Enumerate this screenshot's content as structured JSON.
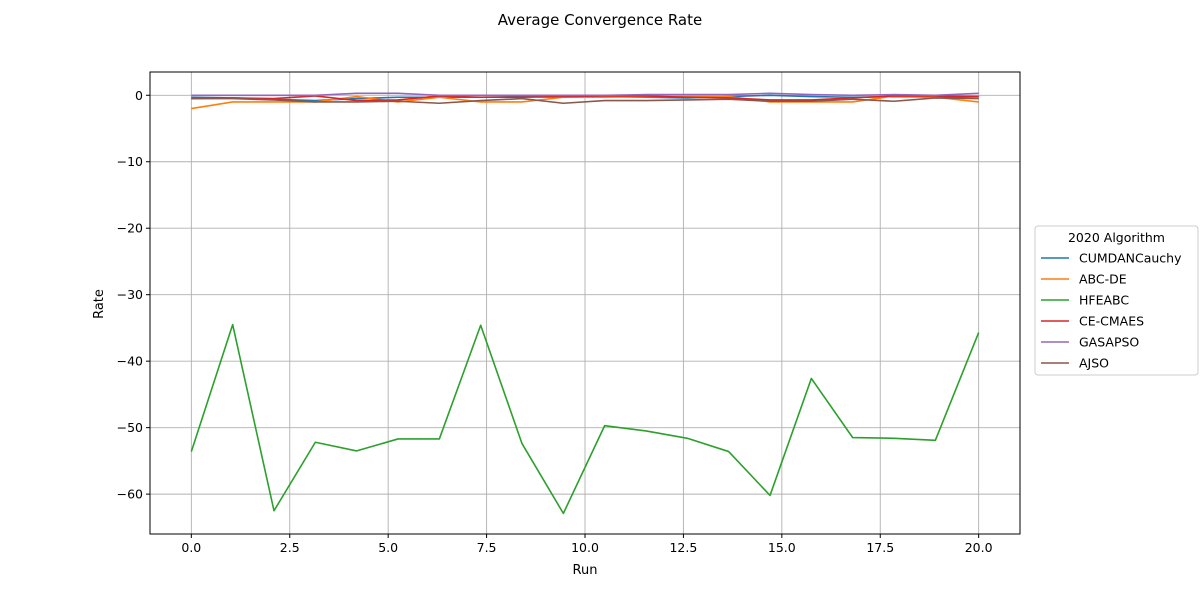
{
  "chart_data": {
    "type": "line",
    "title": "Average Convergence Rate",
    "xlabel": "Run",
    "ylabel": "Rate",
    "xlim": [
      -1.05,
      21.05
    ],
    "ylim": [
      -66,
      3.5
    ],
    "xticks": [
      0.0,
      2.5,
      5.0,
      7.5,
      10.0,
      12.5,
      15.0,
      17.5,
      20.0
    ],
    "xtick_labels": [
      "0.0",
      "2.5",
      "5.0",
      "7.5",
      "10.0",
      "12.5",
      "15.0",
      "17.5",
      "20.0"
    ],
    "yticks": [
      0,
      -10,
      -20,
      -30,
      -40,
      -50,
      -60
    ],
    "ytick_labels": [
      "0",
      "−10",
      "−20",
      "−30",
      "−40",
      "−50",
      "−60"
    ],
    "grid": true,
    "legend": {
      "title": "2020 Algorithm",
      "placement": "right-outside"
    },
    "x": [
      0,
      1.05,
      2.1,
      3.15,
      4.2,
      5.25,
      6.3,
      7.35,
      8.4,
      9.45,
      10.5,
      11.55,
      12.6,
      13.65,
      14.7,
      15.75,
      16.8,
      17.85,
      18.9,
      20
    ],
    "series": [
      {
        "name": "CUMDANCauchy",
        "color": "#1f77b4",
        "values": [
          -0.3,
          -0.4,
          -0.6,
          -0.8,
          -0.5,
          -0.3,
          -0.3,
          -0.3,
          -0.2,
          -0.3,
          -0.2,
          -0.3,
          -0.4,
          -0.2,
          0.0,
          -0.2,
          -0.3,
          -0.2,
          -0.3,
          -0.2
        ]
      },
      {
        "name": "ABC-DE",
        "color": "#ff7f0e",
        "values": [
          -2.0,
          -1.0,
          -1.0,
          -1.0,
          -0.2,
          -1.0,
          -0.3,
          -1.0,
          -1.0,
          -0.3,
          -0.3,
          -0.2,
          -0.2,
          -0.2,
          -1.0,
          -1.0,
          -1.0,
          -0.1,
          -0.3,
          -1.0
        ]
      },
      {
        "name": "HFEABC",
        "color": "#2ca02c",
        "values": [
          -53.6,
          -34.5,
          -62.5,
          -52.2,
          -53.5,
          -51.7,
          -51.7,
          -34.6,
          -52.4,
          -62.9,
          -49.7,
          -50.5,
          -51.6,
          -53.6,
          -60.2,
          -42.6,
          -51.5,
          -51.6,
          -51.9,
          -35.7
        ]
      },
      {
        "name": "CE-CMAES",
        "color": "#d62728",
        "values": [
          -0.5,
          -0.4,
          -0.5,
          -0.1,
          -0.8,
          -0.7,
          -0.1,
          -0.3,
          -0.3,
          -0.2,
          -0.1,
          -0.1,
          -0.3,
          -0.4,
          -0.7,
          -0.7,
          -0.4,
          -0.1,
          -0.1,
          -0.2
        ]
      },
      {
        "name": "GASAPSO",
        "color": "#9467bd",
        "values": [
          0.0,
          0.0,
          0.0,
          0.0,
          0.3,
          0.3,
          0.0,
          0.0,
          0.0,
          0.0,
          0.0,
          0.1,
          0.1,
          0.1,
          0.3,
          0.1,
          0.0,
          0.1,
          0.0,
          0.3
        ]
      },
      {
        "name": "AJSO",
        "color": "#8c564b",
        "values": [
          -0.5,
          -0.5,
          -0.7,
          -1.0,
          -1.0,
          -0.9,
          -1.2,
          -0.8,
          -0.5,
          -1.2,
          -0.8,
          -0.8,
          -0.7,
          -0.6,
          -0.9,
          -0.9,
          -0.6,
          -0.9,
          -0.4,
          -0.5
        ]
      }
    ]
  }
}
